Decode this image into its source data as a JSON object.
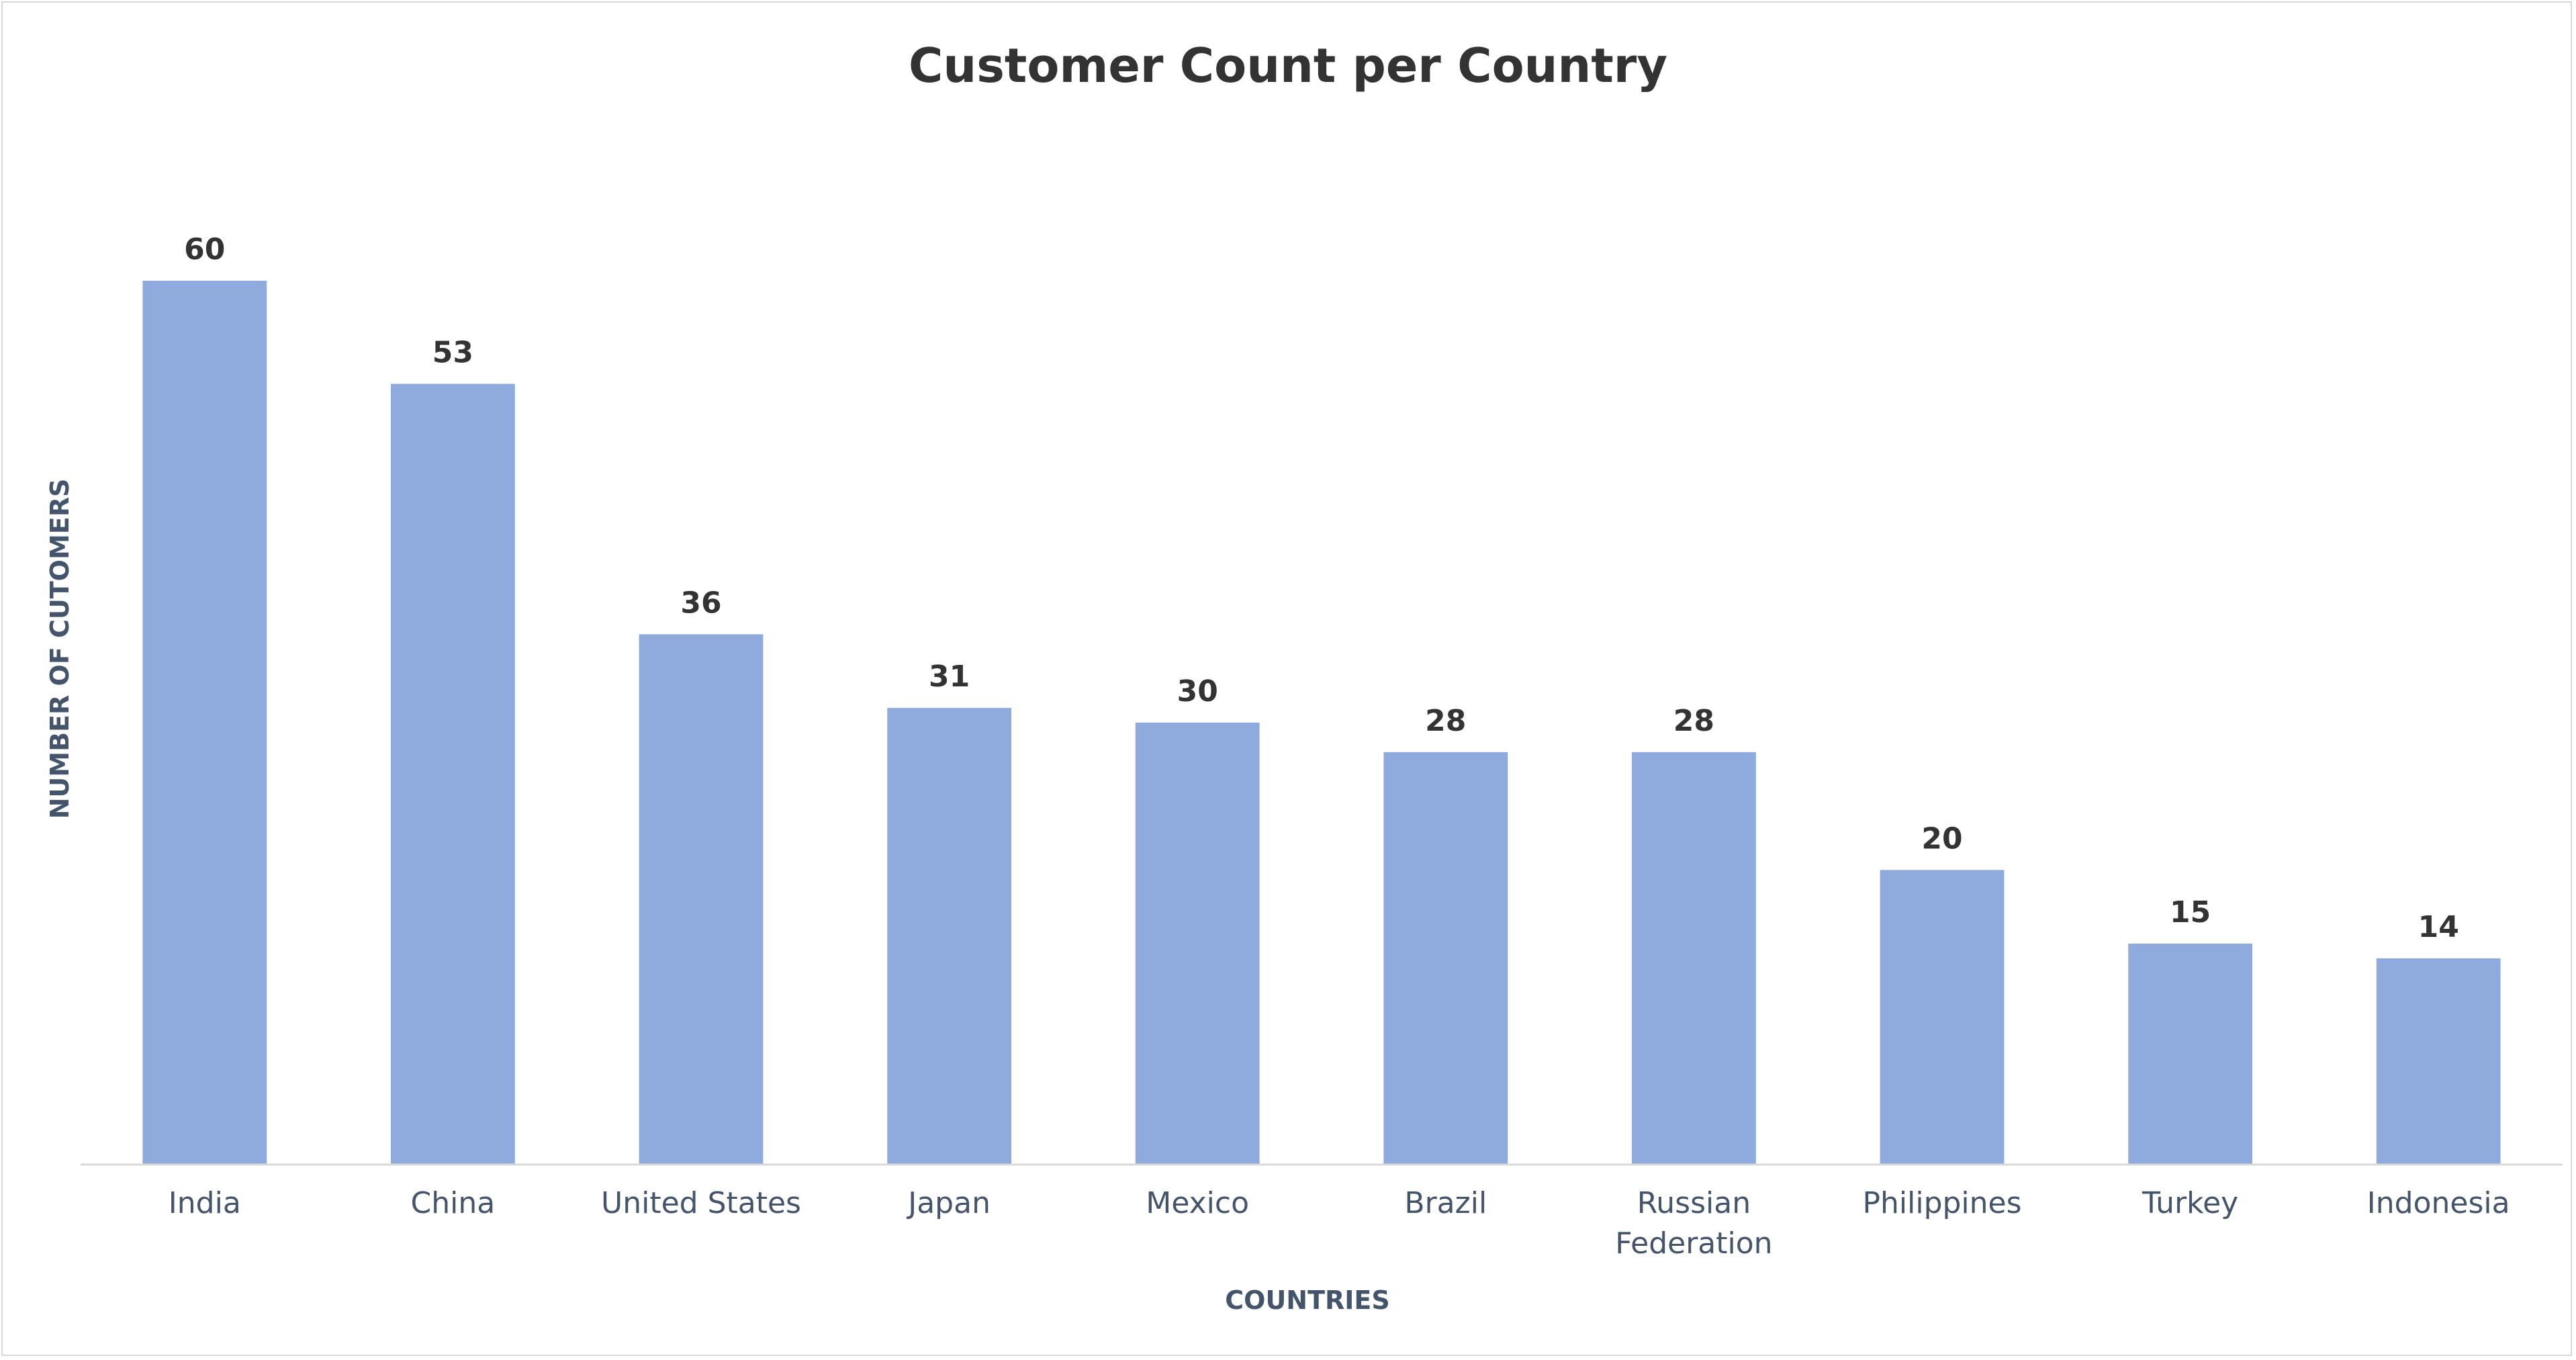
{
  "chart_data": {
    "type": "bar",
    "title": "Customer Count per Country",
    "xlabel": "COUNTRIES",
    "ylabel": "NUMBER OF CUTOMERS",
    "categories": [
      "India",
      "China",
      "United States",
      "Japan",
      "Mexico",
      "Brazil",
      "Russian Federation",
      "Philippines",
      "Turkey",
      "Indonesia"
    ],
    "values": [
      60,
      53,
      36,
      31,
      30,
      28,
      28,
      20,
      15,
      14
    ],
    "ylim": [
      0,
      60
    ],
    "grid": false,
    "legend": "none",
    "bar_color": "#8faadc",
    "axis_color": "#d9d9d9"
  }
}
